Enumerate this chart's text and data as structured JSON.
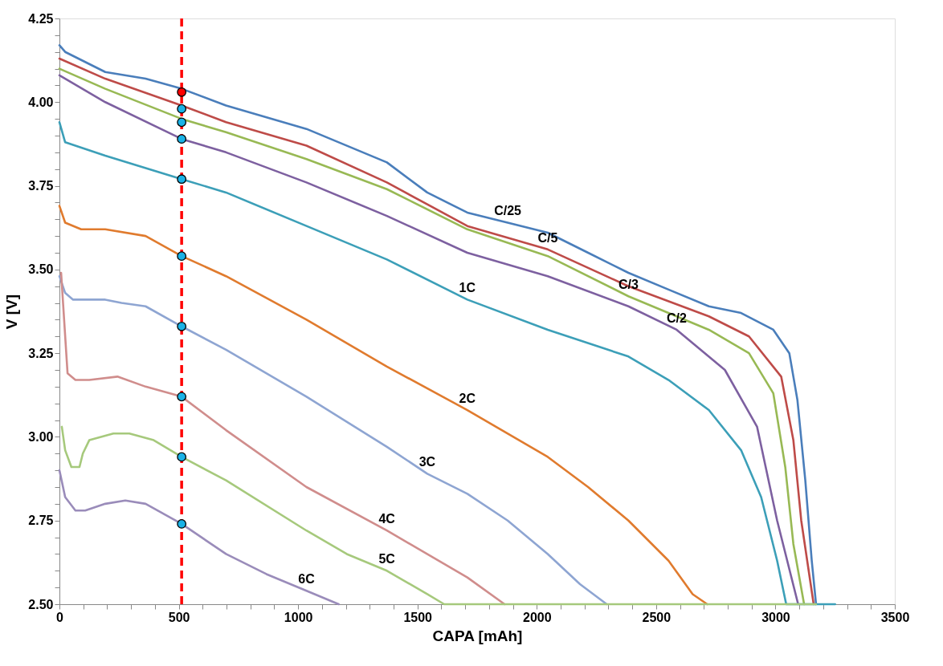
{
  "chart_data": {
    "type": "line",
    "xlabel": "CAPA [mAh]",
    "ylabel": "V [V]",
    "xlim": [
      0,
      3500
    ],
    "ylim": [
      2.5,
      4.25
    ],
    "xticks": [
      0,
      {
        "value": 100,
        "label": null
      },
      {
        "value": 200,
        "label": null
      },
      {
        "value": 300,
        "label": null
      },
      {
        "value": 400,
        "label": null
      },
      500,
      {
        "value": 600,
        "label": null
      },
      {
        "value": 700,
        "label": null
      },
      {
        "value": 800,
        "label": null
      },
      {
        "value": 900,
        "label": null
      },
      1000,
      {
        "value": 1100,
        "label": null
      },
      {
        "value": 1200,
        "label": null
      },
      {
        "value": 1300,
        "label": null
      },
      {
        "value": 1400,
        "label": null
      },
      1500,
      {
        "value": 1600,
        "label": null
      },
      {
        "value": 1700,
        "label": null
      },
      {
        "value": 1800,
        "label": null
      },
      {
        "value": 1900,
        "label": null
      },
      2000,
      {
        "value": 2100,
        "label": null
      },
      {
        "value": 2200,
        "label": null
      },
      {
        "value": 2300,
        "label": null
      },
      {
        "value": 2400,
        "label": null
      },
      2500,
      {
        "value": 2600,
        "label": null
      },
      {
        "value": 2700,
        "label": null
      },
      {
        "value": 2800,
        "label": null
      },
      {
        "value": 2900,
        "label": null
      },
      3000,
      {
        "value": 3100,
        "label": null
      },
      {
        "value": 3200,
        "label": null
      },
      {
        "value": 3300,
        "label": null
      },
      {
        "value": 3400,
        "label": null
      },
      3500
    ],
    "yticks": [
      {
        "value": 2.5,
        "label": "2.50"
      },
      {
        "value": 2.55,
        "label": null
      },
      {
        "value": 2.6,
        "label": null
      },
      {
        "value": 2.65,
        "label": null
      },
      {
        "value": 2.7,
        "label": null
      },
      2.75,
      {
        "value": 2.8,
        "label": null
      },
      {
        "value": 2.85,
        "label": null
      },
      {
        "value": 2.9,
        "label": null
      },
      {
        "value": 2.95,
        "label": null
      },
      {
        "value": 3.0,
        "label": "3.00"
      },
      {
        "value": 3.05,
        "label": null
      },
      {
        "value": 3.1,
        "label": null
      },
      {
        "value": 3.15,
        "label": null
      },
      {
        "value": 3.2,
        "label": null
      },
      3.25,
      {
        "value": 3.3,
        "label": null
      },
      {
        "value": 3.35,
        "label": null
      },
      {
        "value": 3.4,
        "label": null
      },
      {
        "value": 3.45,
        "label": null
      },
      {
        "value": 3.5,
        "label": "3.50"
      },
      {
        "value": 3.55,
        "label": null
      },
      {
        "value": 3.6,
        "label": null
      },
      {
        "value": 3.65,
        "label": null
      },
      {
        "value": 3.7,
        "label": null
      },
      3.75,
      {
        "value": 3.8,
        "label": null
      },
      {
        "value": 3.85,
        "label": null
      },
      {
        "value": 3.9,
        "label": null
      },
      {
        "value": 3.95,
        "label": null
      },
      {
        "value": 4.0,
        "label": "4.00"
      },
      {
        "value": 4.05,
        "label": null
      },
      {
        "value": 4.1,
        "label": null
      },
      {
        "value": 4.15,
        "label": null
      },
      {
        "value": 4.2,
        "label": null
      },
      4.25
    ],
    "grid": false,
    "legend": false,
    "marker": "none",
    "line_style": "solid",
    "series": [
      {
        "name": "C/25",
        "color": "#4a7ebb",
        "x": [
          0,
          24,
          192,
          361,
          512,
          698,
          1035,
          1372,
          1541,
          1709,
          1878,
          2046,
          2215,
          2384,
          2552,
          2721,
          2856,
          2991,
          3058,
          3092,
          3125,
          3152,
          3170
        ],
        "values": [
          4.17,
          4.15,
          4.09,
          4.07,
          4.04,
          3.99,
          3.92,
          3.82,
          3.73,
          3.67,
          3.64,
          3.61,
          3.55,
          3.49,
          3.44,
          3.39,
          3.37,
          3.32,
          3.25,
          3.11,
          2.87,
          2.63,
          2.5
        ]
      },
      {
        "name": "C/5",
        "color": "#be4b48",
        "x": [
          0,
          192,
          512,
          698,
          1035,
          1372,
          1709,
          2046,
          2384,
          2721,
          2889,
          3024,
          3075,
          3108,
          3160
        ],
        "values": [
          4.13,
          4.07,
          3.99,
          3.94,
          3.87,
          3.76,
          3.63,
          3.56,
          3.45,
          3.36,
          3.3,
          3.18,
          2.99,
          2.75,
          2.5
        ]
      },
      {
        "name": "C/3",
        "color": "#98b954",
        "x": [
          0,
          192,
          512,
          698,
          1035,
          1372,
          1709,
          2046,
          2384,
          2721,
          2889,
          2991,
          3041,
          3075,
          3120
        ],
        "values": [
          4.1,
          4.04,
          3.95,
          3.91,
          3.83,
          3.74,
          3.62,
          3.54,
          3.42,
          3.32,
          3.25,
          3.13,
          2.91,
          2.68,
          2.5
        ]
      },
      {
        "name": "C/2",
        "color": "#7d60a0",
        "x": [
          0,
          192,
          512,
          698,
          1035,
          1372,
          1709,
          2046,
          2384,
          2586,
          2788,
          2923,
          3007,
          3095
        ],
        "values": [
          4.08,
          4.0,
          3.89,
          3.85,
          3.76,
          3.66,
          3.55,
          3.48,
          3.39,
          3.32,
          3.2,
          3.03,
          2.75,
          2.5
        ]
      },
      {
        "name": "1C",
        "color": "#3c9fb8",
        "x": [
          0,
          24,
          192,
          512,
          698,
          1035,
          1372,
          1709,
          2046,
          2384,
          2552,
          2721,
          2856,
          2940,
          3007,
          3045,
          3250
        ],
        "values": [
          3.94,
          3.88,
          3.84,
          3.77,
          3.73,
          3.63,
          3.53,
          3.41,
          3.32,
          3.24,
          3.17,
          3.08,
          2.96,
          2.82,
          2.63,
          2.5,
          2.5
        ]
      },
      {
        "name": "2C",
        "color": "#e07b2e",
        "x": [
          0,
          24,
          91,
          192,
          361,
          512,
          698,
          1035,
          1372,
          1709,
          2046,
          2215,
          2384,
          2552,
          2653,
          2714
        ],
        "values": [
          3.69,
          3.64,
          3.62,
          3.62,
          3.6,
          3.54,
          3.48,
          3.35,
          3.21,
          3.08,
          2.94,
          2.85,
          2.75,
          2.63,
          2.53,
          2.5
        ]
      },
      {
        "name": "3C",
        "color": "#8ea5d2",
        "x": [
          0,
          24,
          57,
          192,
          260,
          361,
          512,
          698,
          1035,
          1372,
          1541,
          1709,
          1878,
          2046,
          2181,
          2293
        ],
        "values": [
          3.48,
          3.43,
          3.41,
          3.41,
          3.4,
          3.39,
          3.33,
          3.26,
          3.12,
          2.97,
          2.89,
          2.83,
          2.75,
          2.65,
          2.56,
          2.5
        ]
      },
      {
        "name": "4C",
        "color": "#d08d8c",
        "x": [
          7,
          34,
          67,
          125,
          243,
          361,
          512,
          698,
          1035,
          1372,
          1709,
          1865
        ],
        "values": [
          3.49,
          3.19,
          3.17,
          3.17,
          3.18,
          3.15,
          3.12,
          3.02,
          2.85,
          2.72,
          2.58,
          2.5
        ]
      },
      {
        "name": "5C",
        "color": "#a6c97c",
        "x": [
          10,
          24,
          50,
          84,
          98,
          125,
          226,
          293,
          395,
          512,
          698,
          1035,
          1204,
          1372,
          1541,
          1612,
          3170
        ],
        "values": [
          3.03,
          2.96,
          2.91,
          2.91,
          2.95,
          2.99,
          3.01,
          3.01,
          2.99,
          2.94,
          2.87,
          2.72,
          2.65,
          2.6,
          2.53,
          2.5,
          2.5
        ]
      },
      {
        "name": "6C",
        "color": "#9a8cba",
        "x": [
          0,
          24,
          67,
          108,
          192,
          276,
          361,
          512,
          698,
          867,
          1035,
          1170
        ],
        "values": [
          2.9,
          2.82,
          2.78,
          2.78,
          2.8,
          2.81,
          2.8,
          2.74,
          2.65,
          2.59,
          2.54,
          2.5
        ]
      },
      {
        "type": "scatter",
        "marker": "circle",
        "x": [
          512,
          512,
          512,
          512,
          512,
          512,
          512,
          512,
          512,
          512
        ],
        "values": [
          4.03,
          3.98,
          3.94,
          3.89,
          3.77,
          3.54,
          3.33,
          3.12,
          2.94,
          2.74
        ],
        "colors": [
          "#ff0000",
          "#1ab2e6",
          "#1ab2e6",
          "#1ab2e6",
          "#1ab2e6",
          "#1ab2e6",
          "#1ab2e6",
          "#1ab2e6",
          "#1ab2e6",
          "#1ab2e6"
        ]
      }
    ],
    "ref_lines": [
      {
        "axis": "x",
        "value": 512,
        "color": "#ff0000",
        "line_style": "dashed"
      }
    ]
  }
}
